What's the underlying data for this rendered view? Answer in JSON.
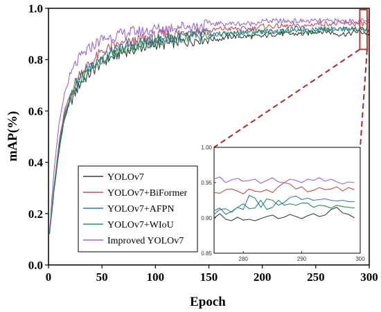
{
  "chart_data": [
    {
      "type": "line",
      "xlabel": "Epoch",
      "ylabel": "mAP(%)",
      "xlim": [
        0,
        300
      ],
      "ylim": [
        0.0,
        1.0
      ],
      "xticks": [
        "0",
        "50",
        "100",
        "150",
        "200",
        "250",
        "300"
      ],
      "yticks": [
        "0.0",
        "0.2",
        "0.4",
        "0.6",
        "0.8",
        "1.0"
      ],
      "legend_position": "bottom-left",
      "x": [
        0,
        5,
        10,
        15,
        20,
        25,
        30,
        40,
        50,
        60,
        70,
        80,
        90,
        100,
        110,
        120,
        130,
        140,
        150,
        160,
        170,
        180,
        190,
        200,
        210,
        220,
        230,
        240,
        250,
        260,
        270,
        280,
        290,
        300
      ],
      "series": [
        {
          "name": "YOLOv7",
          "color": "#3a3a3a",
          "values": [
            0.08,
            0.28,
            0.45,
            0.57,
            0.63,
            0.67,
            0.71,
            0.75,
            0.79,
            0.81,
            0.83,
            0.84,
            0.85,
            0.86,
            0.86,
            0.87,
            0.87,
            0.88,
            0.88,
            0.88,
            0.89,
            0.89,
            0.89,
            0.89,
            0.9,
            0.9,
            0.9,
            0.9,
            0.91,
            0.91,
            0.9,
            0.9,
            0.91,
            0.9
          ]
        },
        {
          "name": "YOLOv7+BiFormer",
          "color": "#c0504d",
          "values": [
            0.08,
            0.3,
            0.48,
            0.6,
            0.66,
            0.71,
            0.75,
            0.79,
            0.83,
            0.85,
            0.86,
            0.87,
            0.88,
            0.89,
            0.9,
            0.9,
            0.91,
            0.91,
            0.91,
            0.92,
            0.92,
            0.92,
            0.92,
            0.93,
            0.93,
            0.93,
            0.93,
            0.93,
            0.94,
            0.94,
            0.94,
            0.94,
            0.94,
            0.94
          ]
        },
        {
          "name": "YOLOv7+AFPN",
          "color": "#2e75b6",
          "values": [
            0.08,
            0.29,
            0.47,
            0.59,
            0.65,
            0.7,
            0.73,
            0.78,
            0.81,
            0.83,
            0.85,
            0.86,
            0.87,
            0.88,
            0.88,
            0.89,
            0.89,
            0.9,
            0.9,
            0.9,
            0.9,
            0.91,
            0.91,
            0.91,
            0.91,
            0.91,
            0.92,
            0.92,
            0.92,
            0.92,
            0.92,
            0.92,
            0.92,
            0.92
          ]
        },
        {
          "name": "YOLOv7+WIoU",
          "color": "#2e8b57",
          "values": [
            0.08,
            0.29,
            0.46,
            0.58,
            0.64,
            0.69,
            0.72,
            0.77,
            0.8,
            0.82,
            0.84,
            0.85,
            0.86,
            0.87,
            0.88,
            0.88,
            0.89,
            0.89,
            0.89,
            0.9,
            0.9,
            0.9,
            0.9,
            0.91,
            0.91,
            0.91,
            0.91,
            0.91,
            0.91,
            0.92,
            0.92,
            0.92,
            0.92,
            0.91
          ]
        },
        {
          "name": "Improved YOLOv7",
          "color": "#9966cc",
          "values": [
            0.08,
            0.36,
            0.55,
            0.67,
            0.73,
            0.78,
            0.81,
            0.85,
            0.88,
            0.89,
            0.9,
            0.91,
            0.91,
            0.92,
            0.92,
            0.93,
            0.93,
            0.93,
            0.94,
            0.94,
            0.94,
            0.94,
            0.94,
            0.95,
            0.95,
            0.95,
            0.95,
            0.95,
            0.95,
            0.95,
            0.95,
            0.95,
            0.95,
            0.95
          ]
        }
      ]
    },
    {
      "type": "line",
      "title": "",
      "xlim": [
        275,
        300
      ],
      "ylim": [
        0.85,
        1.0
      ],
      "xticks": [
        "280",
        "290",
        "300"
      ],
      "yticks": [
        "0.85",
        "0.90",
        "0.95",
        "1.00"
      ],
      "x": [
        275,
        276,
        277,
        278,
        279,
        280,
        281,
        282,
        283,
        284,
        285,
        286,
        287,
        288,
        289,
        290,
        291,
        292,
        293,
        294,
        295,
        296,
        297,
        298,
        299
      ],
      "series": [
        {
          "name": "YOLOv7",
          "color": "#3a3a3a",
          "values": [
            0.9,
            0.906,
            0.898,
            0.896,
            0.901,
            0.897,
            0.898,
            0.896,
            0.899,
            0.902,
            0.904,
            0.899,
            0.901,
            0.905,
            0.902,
            0.899,
            0.903,
            0.906,
            0.902,
            0.904,
            0.912,
            0.915,
            0.907,
            0.905,
            0.9
          ]
        },
        {
          "name": "YOLOv7+BiFormer",
          "color": "#c0504d",
          "values": [
            0.936,
            0.935,
            0.94,
            0.941,
            0.938,
            0.934,
            0.941,
            0.938,
            0.937,
            0.94,
            0.936,
            0.944,
            0.95,
            0.948,
            0.941,
            0.944,
            0.937,
            0.939,
            0.943,
            0.94,
            0.941,
            0.944,
            0.938,
            0.943,
            0.94
          ]
        },
        {
          "name": "YOLOv7+AFPN",
          "color": "#2e75b6",
          "values": [
            0.91,
            0.914,
            0.905,
            0.909,
            0.915,
            0.912,
            0.932,
            0.928,
            0.915,
            0.927,
            0.925,
            0.918,
            0.922,
            0.929,
            0.931,
            0.926,
            0.928,
            0.925,
            0.926,
            0.927,
            0.925,
            0.924,
            0.925,
            0.923,
            0.923
          ]
        },
        {
          "name": "YOLOv7+WIoU",
          "color": "#2e8b57",
          "values": [
            0.905,
            0.912,
            0.913,
            0.908,
            0.915,
            0.92,
            0.913,
            0.914,
            0.925,
            0.912,
            0.915,
            0.925,
            0.918,
            0.92,
            0.918,
            0.921,
            0.921,
            0.915,
            0.918,
            0.917,
            0.914,
            0.918,
            0.916,
            0.915,
            0.914
          ]
        },
        {
          "name": "Improved YOLOv7",
          "color": "#9966cc",
          "values": [
            0.955,
            0.958,
            0.95,
            0.954,
            0.956,
            0.952,
            0.953,
            0.955,
            0.949,
            0.953,
            0.957,
            0.951,
            0.95,
            0.955,
            0.953,
            0.95,
            0.955,
            0.953,
            0.957,
            0.952,
            0.955,
            0.951,
            0.948,
            0.951,
            0.95
          ]
        }
      ]
    }
  ]
}
